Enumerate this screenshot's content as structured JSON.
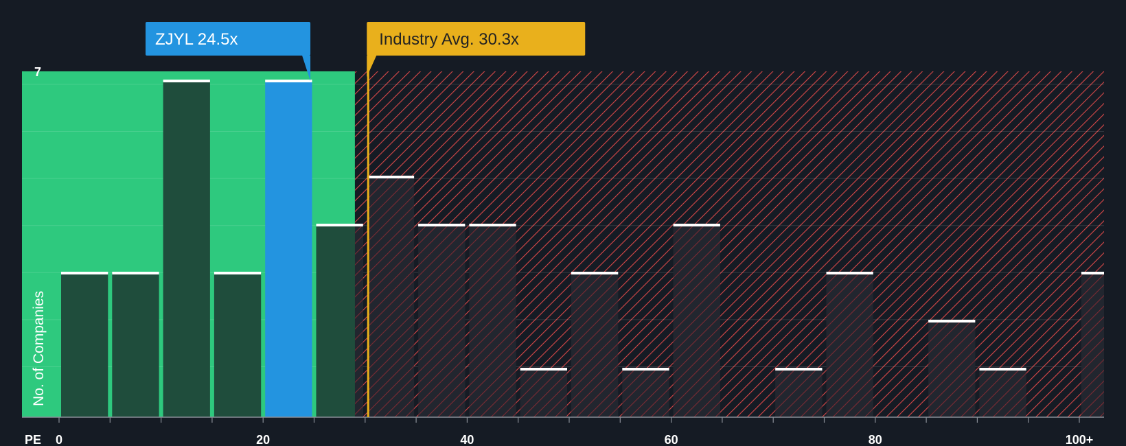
{
  "chart_data": {
    "type": "bar",
    "title": "",
    "xlabel": "PE",
    "ylabel": "No. of Companies",
    "xlim": [
      0,
      102
    ],
    "ylim": [
      0,
      7.3
    ],
    "y_tick_labels": [
      {
        "value": 7,
        "label": "7"
      }
    ],
    "x_tick_labels": [
      {
        "value": 0,
        "label": "0"
      },
      {
        "value": 20,
        "label": "20"
      },
      {
        "value": 40,
        "label": "40"
      },
      {
        "value": 60,
        "label": "60"
      },
      {
        "value": 80,
        "label": "80"
      },
      {
        "value": 100,
        "label": "100+"
      }
    ],
    "bin_width": 5,
    "bins": [
      {
        "start": 0,
        "count": 3
      },
      {
        "start": 5,
        "count": 3
      },
      {
        "start": 10,
        "count": 7
      },
      {
        "start": 15,
        "count": 3
      },
      {
        "start": 20,
        "count": 7,
        "highlight": true
      },
      {
        "start": 25,
        "count": 4
      },
      {
        "start": 30,
        "count": 5
      },
      {
        "start": 35,
        "count": 4
      },
      {
        "start": 40,
        "count": 4
      },
      {
        "start": 45,
        "count": 1
      },
      {
        "start": 50,
        "count": 3
      },
      {
        "start": 55,
        "count": 1
      },
      {
        "start": 60,
        "count": 4
      },
      {
        "start": 65,
        "count": 0
      },
      {
        "start": 70,
        "count": 1
      },
      {
        "start": 75,
        "count": 3
      },
      {
        "start": 80,
        "count": 0
      },
      {
        "start": 85,
        "count": 2
      },
      {
        "start": 90,
        "count": 1
      },
      {
        "start": 95,
        "count": 0
      },
      {
        "start": 100,
        "count": 3
      }
    ],
    "company": {
      "label": "ZJYL 24.5x",
      "ticker": "ZJYL",
      "pe": 24.5
    },
    "industry_avg": {
      "label": "Industry Avg. 30.3x",
      "pe": 30.3
    },
    "fair_zone_end": 29.0,
    "colors": {
      "background": "#151b24",
      "fair_zone": "#2ec97e",
      "bar_green": "#1f4d3c",
      "bar_highlight": "#2394e0",
      "bar_dark": "#262a35",
      "hatch": "#d94848",
      "company_callout": "#2394e0",
      "industry_callout": "#e9b01c",
      "bar_cap": "#ffffff",
      "gridline": "#ffffff"
    }
  }
}
